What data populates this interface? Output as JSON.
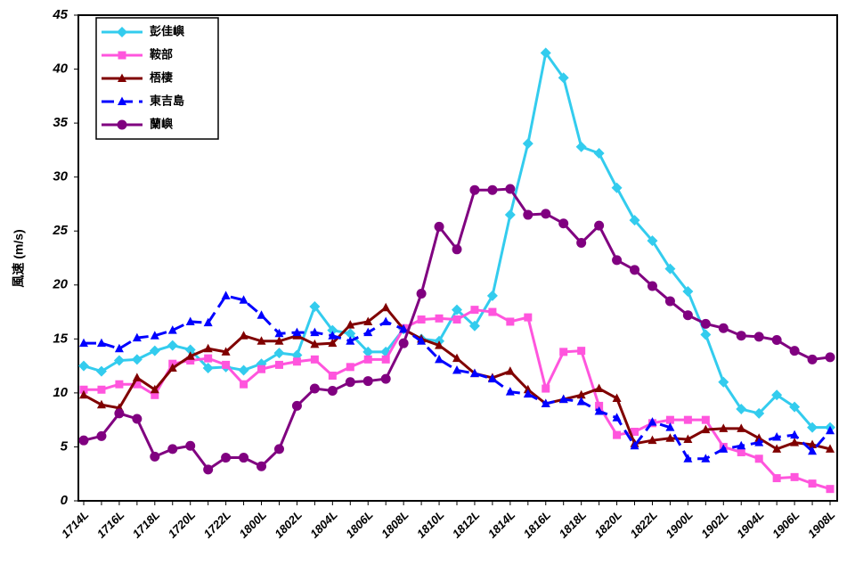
{
  "chart_data": {
    "type": "line",
    "y_label": "風速 (m/s)",
    "categories": [
      "1714L",
      null,
      "1716L",
      null,
      "1718L",
      null,
      "1720L",
      null,
      "1722L",
      null,
      "1800L",
      null,
      "1802L",
      null,
      "1804L",
      null,
      "1806L",
      null,
      "1808L",
      null,
      "1810L",
      null,
      "1812L",
      null,
      "1814L",
      null,
      "1816L",
      null,
      "1818L",
      null,
      "1820L",
      null,
      "1822L",
      null,
      "1900L",
      null,
      "1902L",
      null,
      "1904L",
      null,
      "1906L",
      null,
      "1908L"
    ],
    "ylim": [
      0,
      45
    ],
    "yticks": [
      0,
      5,
      10,
      15,
      20,
      25,
      30,
      35,
      40,
      45
    ],
    "legend": "upper-left",
    "series": [
      {
        "name": "彭佳嶼",
        "color": "#33ccee",
        "marker": "diamond",
        "dash": false,
        "values": [
          12.5,
          12.0,
          13.0,
          13.1,
          13.9,
          14.4,
          14.0,
          12.3,
          12.4,
          12.1,
          12.7,
          13.7,
          13.5,
          18.0,
          15.8,
          15.5,
          13.8,
          13.8,
          15.9,
          15.0,
          14.8,
          17.7,
          16.2,
          19.0,
          26.5,
          33.1,
          41.5,
          39.2,
          32.8,
          32.2,
          29.0,
          26.0,
          24.1,
          21.5,
          19.4,
          15.4,
          11.0,
          8.5,
          8.1,
          9.8,
          8.7,
          6.8,
          6.8
        ]
      },
      {
        "name": "鞍部",
        "color": "#ff55dd",
        "marker": "square",
        "dash": false,
        "values": [
          10.3,
          10.3,
          10.8,
          10.8,
          9.8,
          12.7,
          13.0,
          13.2,
          12.6,
          10.8,
          12.2,
          12.6,
          12.9,
          13.1,
          11.6,
          12.4,
          13.1,
          13.1,
          16.0,
          16.8,
          16.9,
          16.8,
          17.7,
          17.5,
          16.6,
          17.0,
          10.4,
          13.8,
          13.9,
          8.8,
          6.1,
          6.4,
          7.2,
          7.5,
          7.5,
          7.5,
          5.0,
          4.5,
          3.9,
          2.1,
          2.2,
          1.6,
          1.1
        ]
      },
      {
        "name": "梧棲",
        "color": "#800000",
        "marker": "triangle",
        "dash": false,
        "values": [
          9.8,
          8.9,
          8.6,
          11.4,
          10.3,
          12.3,
          13.4,
          14.1,
          13.8,
          15.3,
          14.8,
          14.8,
          15.3,
          14.5,
          14.6,
          16.3,
          16.6,
          17.9,
          15.9,
          15.0,
          14.4,
          13.2,
          11.8,
          11.4,
          12.0,
          10.3,
          9.0,
          9.4,
          9.8,
          10.4,
          9.5,
          5.3,
          5.6,
          5.8,
          5.7,
          6.6,
          6.7,
          6.7,
          5.8,
          4.8,
          5.4,
          5.2,
          4.8
        ]
      },
      {
        "name": "東吉島",
        "color": "#0000ff",
        "marker": "triangle",
        "dash": true,
        "values": [
          14.6,
          14.6,
          14.1,
          15.1,
          15.3,
          15.8,
          16.6,
          16.5,
          19.0,
          18.6,
          17.2,
          15.5,
          15.6,
          15.6,
          15.3,
          14.8,
          15.6,
          16.6,
          15.9,
          14.8,
          13.1,
          12.1,
          11.8,
          11.3,
          10.1,
          9.9,
          9.0,
          9.4,
          9.2,
          8.3,
          7.7,
          5.1,
          7.3,
          6.8,
          3.9,
          3.9,
          4.8,
          5.1,
          5.4,
          5.9,
          6.1,
          4.6,
          6.5
        ]
      },
      {
        "name": "蘭嶼",
        "color": "#800080",
        "marker": "circle",
        "dash": false,
        "values": [
          5.6,
          6.0,
          8.1,
          7.6,
          4.1,
          4.8,
          5.1,
          2.9,
          4.0,
          4.0,
          3.2,
          4.8,
          8.8,
          10.4,
          10.2,
          11.0,
          11.1,
          11.3,
          14.6,
          19.2,
          25.4,
          23.3,
          28.8,
          28.8,
          28.9,
          26.5,
          26.6,
          25.7,
          23.9,
          25.5,
          22.3,
          21.4,
          19.9,
          18.5,
          17.2,
          16.4,
          16.0,
          15.3,
          15.2,
          14.9,
          13.9,
          13.1,
          13.3
        ]
      }
    ]
  }
}
